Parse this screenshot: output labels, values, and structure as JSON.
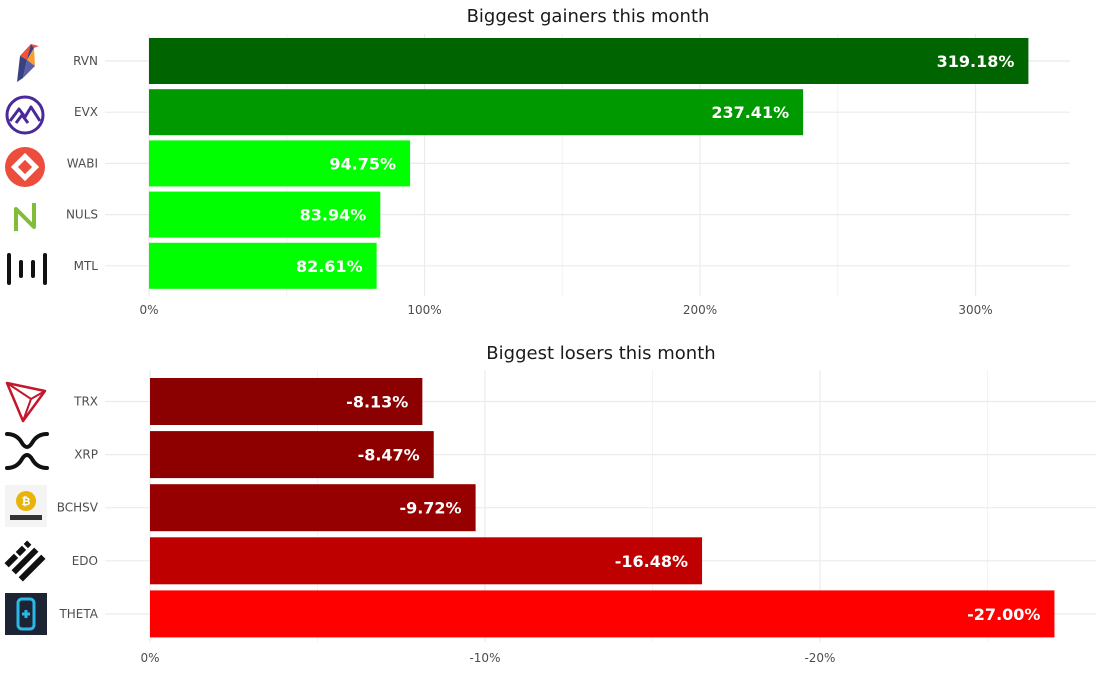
{
  "chart_data": [
    {
      "type": "bar",
      "orientation": "horizontal",
      "title": "Biggest gainers this month",
      "categories": [
        "RVN",
        "EVX",
        "WABI",
        "NULS",
        "MTL"
      ],
      "values": [
        319.18,
        237.41,
        94.75,
        83.94,
        82.61
      ],
      "value_labels": [
        "319.18%",
        "237.41%",
        "94.75%",
        "83.94%",
        "82.61%"
      ],
      "bar_colors": [
        "#006400",
        "#009900",
        "#00ff00",
        "#00ff00",
        "#00ff00"
      ],
      "x_ticks": [
        0,
        100,
        200,
        300
      ],
      "x_tick_labels": [
        "0%",
        "100%",
        "200%",
        "300%"
      ],
      "xlim": [
        0,
        335
      ],
      "xlabel": "",
      "ylabel": "",
      "grid": true,
      "legend": "none",
      "icons": [
        "raven-logo-icon",
        "everex-logo-icon",
        "wabi-logo-icon",
        "nuls-logo-icon",
        "metal-logo-icon"
      ]
    },
    {
      "type": "bar",
      "orientation": "horizontal",
      "title": "Biggest losers this month",
      "categories": [
        "TRX",
        "XRP",
        "BCHSV",
        "EDO",
        "THETA"
      ],
      "values": [
        -8.13,
        -8.47,
        -9.72,
        -16.48,
        -27.0
      ],
      "value_labels": [
        "-8.13%",
        "-8.47%",
        "-9.72%",
        "-16.48%",
        "-27.00%"
      ],
      "bar_colors": [
        "#8b0000",
        "#8e0000",
        "#960000",
        "#bf0000",
        "#ff0000"
      ],
      "x_ticks": [
        0,
        -10,
        -20
      ],
      "x_tick_labels": [
        "0%",
        "-10%",
        "-20%"
      ],
      "xlim": [
        0,
        -28.3
      ],
      "xlabel": "",
      "ylabel": "",
      "grid": true,
      "legend": "none",
      "icons": [
        "tron-logo-icon",
        "xrp-logo-icon",
        "bitcoin-sv-logo-icon",
        "eidoo-logo-icon",
        "theta-logo-icon"
      ]
    }
  ]
}
